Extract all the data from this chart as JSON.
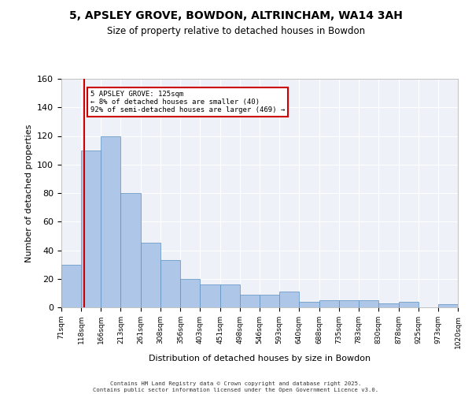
{
  "title": "5, APSLEY GROVE, BOWDON, ALTRINCHAM, WA14 3AH",
  "subtitle": "Size of property relative to detached houses in Bowdon",
  "xlabel": "Distribution of detached houses by size in Bowdon",
  "ylabel": "Number of detached properties",
  "bar_color": "#aec6e8",
  "bar_edge_color": "#5a8fc0",
  "background_color": "#eef2f8",
  "annotation_box_color": "#cc0000",
  "annotation_line_color": "#cc0000",
  "property_line_x": 125,
  "annotation_text": "5 APSLEY GROVE: 125sqm\n← 8% of detached houses are smaller (40)\n92% of semi-detached houses are larger (469) →",
  "footer_text": "Contains HM Land Registry data © Crown copyright and database right 2025.\nContains public sector information licensed under the Open Government Licence v3.0.",
  "bins": [
    71,
    118,
    166,
    213,
    261,
    308,
    356,
    403,
    451,
    498,
    546,
    593,
    640,
    688,
    735,
    783,
    830,
    878,
    925,
    973,
    1020
  ],
  "bin_labels": [
    "71sqm",
    "118sqm",
    "166sqm",
    "213sqm",
    "261sqm",
    "308sqm",
    "356sqm",
    "403sqm",
    "451sqm",
    "498sqm",
    "546sqm",
    "593sqm",
    "640sqm",
    "688sqm",
    "735sqm",
    "783sqm",
    "830sqm",
    "878sqm",
    "925sqm",
    "973sqm",
    "1020sqm"
  ],
  "counts": [
    30,
    110,
    120,
    80,
    45,
    33,
    20,
    16,
    16,
    9,
    9,
    11,
    4,
    5,
    5,
    5,
    3,
    4,
    0,
    2
  ],
  "ylim": [
    0,
    160
  ],
  "yticks": [
    0,
    20,
    40,
    60,
    80,
    100,
    120,
    140,
    160
  ]
}
